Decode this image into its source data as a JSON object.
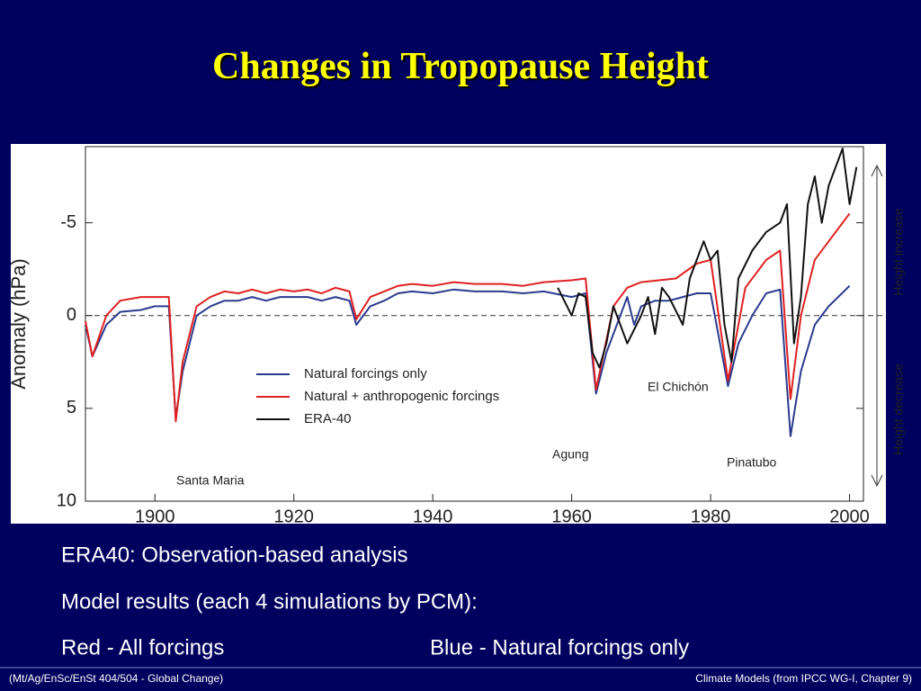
{
  "slide": {
    "title": "Changes in Tropopause Height",
    "bullets": [
      "ERA40:  Observation-based analysis",
      "Model results (each 4 simulations by PCM):",
      "Red - All forcings",
      "Blue - Natural forcings only"
    ],
    "footer_left": "(Mt/Ag/EnSc/EnSt 404/504 - Global Change)",
    "footer_right": "Climate Models  (from IPCC WG-I, Chapter 9)"
  },
  "chart_data": {
    "type": "line",
    "y_label": "Anomaly (hPa)",
    "xlim": [
      1890,
      2002
    ],
    "xticks": [
      1900,
      1920,
      1940,
      1960,
      1980,
      2000
    ],
    "ylim": [
      -9.1,
      10
    ],
    "y_inverted": true,
    "yticks": [
      -5,
      0,
      5,
      10
    ],
    "annotations": [
      "Santa Maria",
      "Agung",
      "El Chichón",
      "Pinatubo",
      "Height increase",
      "Height decrease"
    ],
    "series": [
      {
        "name": "Natural forcings only",
        "color": "#2b3a8f",
        "x": [
          1890,
          1891,
          1893,
          1895,
          1898,
          1900,
          1902,
          1903,
          1904,
          1906,
          1908,
          1910,
          1912,
          1914,
          1916,
          1918,
          1920,
          1922,
          1924,
          1926,
          1928,
          1929,
          1931,
          1933,
          1935,
          1937,
          1940,
          1943,
          1946,
          1950,
          1953,
          1956,
          1960,
          1962,
          1963.5,
          1965,
          1967,
          1968,
          1969,
          1970,
          1972,
          1974,
          1976,
          1978,
          1980,
          1982.5,
          1984,
          1986,
          1988,
          1990,
          1991.5,
          1993,
          1995,
          1997,
          2000
        ],
        "values": [
          0.5,
          2.2,
          0.5,
          -0.2,
          -0.3,
          -0.5,
          -0.5,
          5.5,
          3,
          0,
          -0.5,
          -0.8,
          -0.8,
          -1,
          -0.8,
          -1,
          -1,
          -1,
          -0.8,
          -1,
          -0.8,
          0.5,
          -0.5,
          -0.8,
          -1.2,
          -1.3,
          -1.2,
          -1.4,
          -1.3,
          -1.3,
          -1.2,
          -1.3,
          -1,
          -1.2,
          4.2,
          2,
          0,
          -1,
          0.5,
          -0.5,
          -0.8,
          -0.8,
          -1,
          -1.2,
          -1.2,
          3.8,
          1.5,
          0,
          -1.2,
          -1.4,
          6.5,
          3,
          0.5,
          -0.5,
          -1.6
        ]
      },
      {
        "name": "Natural + anthropogenic forcings",
        "color": "#e02020",
        "x": [
          1890,
          1891,
          1893,
          1895,
          1898,
          1900,
          1902,
          1903,
          1904,
          1906,
          1908,
          1910,
          1912,
          1914,
          1916,
          1918,
          1920,
          1922,
          1924,
          1926,
          1928,
          1929,
          1931,
          1933,
          1935,
          1937,
          1940,
          1943,
          1946,
          1950,
          1953,
          1956,
          1960,
          1962,
          1963.5,
          1966,
          1968,
          1970,
          1975,
          1978,
          1980,
          1982.5,
          1985,
          1988,
          1990,
          1991.5,
          1993,
          1995,
          1997,
          2000
        ],
        "values": [
          0.3,
          2.2,
          0,
          -0.8,
          -1,
          -1,
          -1,
          5.7,
          2.5,
          -0.5,
          -1,
          -1.3,
          -1.2,
          -1.4,
          -1.2,
          -1.4,
          -1.3,
          -1.4,
          -1.2,
          -1.5,
          -1.3,
          0.2,
          -1,
          -1.3,
          -1.6,
          -1.7,
          -1.6,
          -1.8,
          -1.7,
          -1.7,
          -1.6,
          -1.8,
          -1.9,
          -2,
          4,
          -0.5,
          -1.5,
          -1.8,
          -2,
          -2.8,
          -3,
          3.5,
          -1.5,
          -3,
          -3.5,
          4.5,
          0,
          -3,
          -4,
          -5.5
        ]
      },
      {
        "name": "ERA-40",
        "color": "#111111",
        "x": [
          1958,
          1960,
          1961,
          1962,
          1963,
          1964,
          1965,
          1966,
          1967,
          1968,
          1970,
          1971,
          1972,
          1973,
          1974,
          1976,
          1977,
          1979,
          1980,
          1981,
          1982,
          1983,
          1984,
          1986,
          1988,
          1990,
          1991,
          1992,
          1993,
          1994,
          1995,
          1996,
          1997,
          1998,
          1999,
          2000,
          2001
        ],
        "values": [
          -1.5,
          0,
          -1.2,
          -1,
          2,
          2.8,
          1.5,
          -0.5,
          0.5,
          1.5,
          0,
          -1,
          1,
          -1.5,
          -1,
          0.5,
          -2,
          -4,
          -3,
          -3.5,
          0.5,
          2.5,
          -2,
          -3.5,
          -4.5,
          -5,
          -6,
          1.5,
          -1,
          -6,
          -7.5,
          -5,
          -7,
          -8,
          -9,
          -6,
          -8
        ]
      }
    ]
  }
}
